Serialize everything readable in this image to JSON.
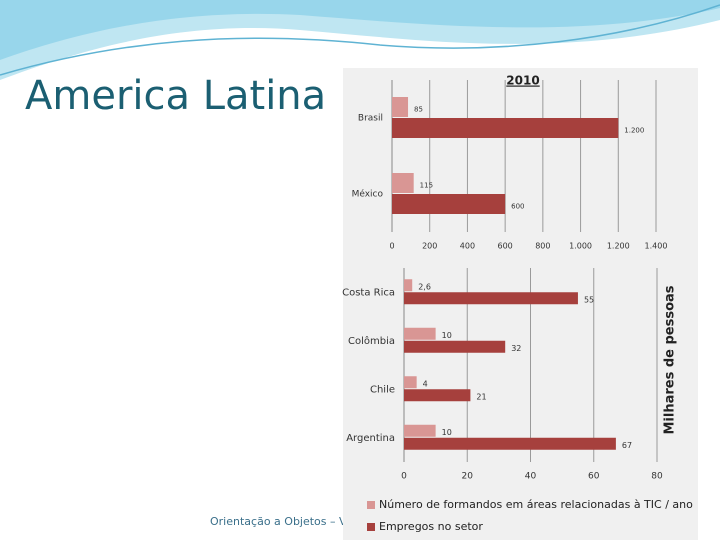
{
  "slide": {
    "title": "America Latina",
    "footer": "Orientação a Objetos – V"
  },
  "chart_data": [
    {
      "type": "hbar",
      "title": "2010",
      "categories": [
        "Brasil",
        "México"
      ],
      "series": [
        {
          "color": "#d99694",
          "values": [
            85,
            115
          ]
        },
        {
          "color": "#a6403d",
          "values": [
            1200,
            600
          ],
          "value_labels": [
            "1.200",
            "600"
          ]
        }
      ],
      "xlim": [
        0,
        1400
      ],
      "xticks": [
        0,
        200,
        400,
        600,
        800,
        {
          "value": 1000,
          "label": "1.000"
        },
        {
          "value": 1200,
          "label": "1.200"
        },
        {
          "value": 1400,
          "label": "1.400"
        }
      ],
      "grid": true
    },
    {
      "type": "hbar",
      "axis_label": "Milhares de pessoas",
      "categories": [
        "Costa Rica",
        "Colômbia",
        "Chile",
        "Argentina"
      ],
      "series": [
        {
          "name": "Número de formandos em áreas relacionadas à TIC / ano",
          "color": "#d99694",
          "values": [
            2.6,
            10,
            4,
            10
          ],
          "value_labels": [
            "2,6",
            "10",
            "4",
            "10"
          ]
        },
        {
          "name": "Empregos no setor",
          "color": "#a6403d",
          "values": [
            55,
            32,
            21,
            67
          ]
        }
      ],
      "xlim": [
        0,
        80
      ],
      "xticks": [
        0,
        20,
        40,
        60,
        80
      ],
      "grid": true
    }
  ]
}
